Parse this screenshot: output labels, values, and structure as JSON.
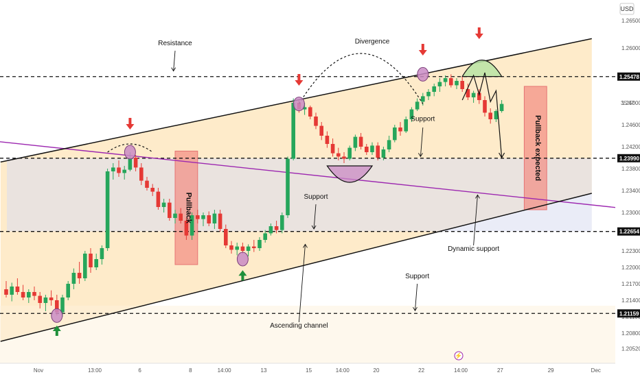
{
  "chart_data": {
    "type": "candlestick",
    "currency": "USD",
    "ylim": [
      1.2025,
      1.2675
    ],
    "y_ticks": [
      "1.26500",
      "1.26000",
      "1.25500",
      "1.25000",
      "1.24600",
      "1.24200",
      "1.23800",
      "1.23400",
      "1.23000",
      "1.22300",
      "1.22000",
      "1.21700",
      "1.21400",
      "1.21100",
      "1.20800",
      "1.20520"
    ],
    "y_tick_values": [
      1.265,
      1.26,
      1.255,
      1.25,
      1.246,
      1.242,
      1.238,
      1.234,
      1.23,
      1.223,
      1.22,
      1.217,
      1.214,
      1.211,
      1.208,
      1.2052
    ],
    "x_ticks": [
      "Nov",
      "13:00",
      "6",
      "8",
      "14:00",
      "13",
      "15",
      "14:00",
      "20",
      "22",
      "14:00",
      "27",
      "29",
      "Dec"
    ],
    "x_tick_index": [
      0,
      10,
      18,
      27,
      33,
      40,
      48,
      54,
      60,
      68,
      75,
      82,
      91,
      99
    ],
    "time_badge": "35:47",
    "candles": [
      [
        1.216,
        1.2175,
        1.2145,
        1.215
      ],
      [
        1.215,
        1.2172,
        1.2138,
        1.2165
      ],
      [
        1.2165,
        1.218,
        1.215,
        1.2155
      ],
      [
        1.2155,
        1.2168,
        1.214,
        1.2145
      ],
      [
        1.2145,
        1.216,
        1.2135,
        1.2155
      ],
      [
        1.2155,
        1.2165,
        1.214,
        1.2148
      ],
      [
        1.2148,
        1.2155,
        1.2125,
        1.2135
      ],
      [
        1.2135,
        1.215,
        1.212,
        1.2145
      ],
      [
        1.2145,
        1.2158,
        1.213,
        1.214
      ],
      [
        1.214,
        1.215,
        1.2112,
        1.2118
      ],
      [
        1.2118,
        1.215,
        1.211,
        1.2145
      ],
      [
        1.2145,
        1.2175,
        1.214,
        1.217
      ],
      [
        1.217,
        1.2198,
        1.216,
        1.219
      ],
      [
        1.219,
        1.221,
        1.217,
        1.218
      ],
      [
        1.218,
        1.223,
        1.2175,
        1.2225
      ],
      [
        1.2225,
        1.2235,
        1.219,
        1.22
      ],
      [
        1.22,
        1.2225,
        1.2195,
        1.2215
      ],
      [
        1.2215,
        1.224,
        1.2205,
        1.2235
      ],
      [
        1.2235,
        1.238,
        1.223,
        1.2375
      ],
      [
        1.2375,
        1.239,
        1.236,
        1.2382
      ],
      [
        1.2382,
        1.2395,
        1.2365,
        1.2372
      ],
      [
        1.2372,
        1.2385,
        1.236,
        1.2378
      ],
      [
        1.2378,
        1.241,
        1.2375,
        1.24
      ],
      [
        1.24,
        1.2405,
        1.2375,
        1.2382
      ],
      [
        1.2382,
        1.239,
        1.235,
        1.2358
      ],
      [
        1.2358,
        1.2365,
        1.234,
        1.2345
      ],
      [
        1.2345,
        1.2352,
        1.233,
        1.2338
      ],
      [
        1.2338,
        1.2345,
        1.2305,
        1.231
      ],
      [
        1.231,
        1.2325,
        1.23,
        1.2318
      ],
      [
        1.2318,
        1.2325,
        1.2285,
        1.229
      ],
      [
        1.229,
        1.2305,
        1.228,
        1.2298
      ],
      [
        1.2298,
        1.2308,
        1.228,
        1.2285
      ],
      [
        1.2285,
        1.229,
        1.225,
        1.2258
      ],
      [
        1.2258,
        1.23,
        1.225,
        1.2295
      ],
      [
        1.2295,
        1.2305,
        1.228,
        1.2288
      ],
      [
        1.2288,
        1.23,
        1.2275,
        1.2295
      ],
      [
        1.2295,
        1.2302,
        1.2275,
        1.228
      ],
      [
        1.228,
        1.2305,
        1.227,
        1.2298
      ],
      [
        1.2298,
        1.2305,
        1.2265,
        1.227
      ],
      [
        1.227,
        1.2278,
        1.2235,
        1.224
      ],
      [
        1.224,
        1.2248,
        1.2225,
        1.2232
      ],
      [
        1.2232,
        1.2245,
        1.2222,
        1.2238
      ],
      [
        1.2238,
        1.2245,
        1.2225,
        1.223
      ],
      [
        1.223,
        1.2242,
        1.222,
        1.2238
      ],
      [
        1.2238,
        1.225,
        1.2228,
        1.2235
      ],
      [
        1.2235,
        1.2255,
        1.223,
        1.225
      ],
      [
        1.225,
        1.2268,
        1.2245,
        1.2262
      ],
      [
        1.2262,
        1.228,
        1.2258,
        1.2275
      ],
      [
        1.2275,
        1.2285,
        1.2262,
        1.2268
      ],
      [
        1.2268,
        1.23,
        1.2262,
        1.2295
      ],
      [
        1.2295,
        1.2402,
        1.229,
        1.2398
      ],
      [
        1.2398,
        1.2508,
        1.2395,
        1.25
      ],
      [
        1.25,
        1.2505,
        1.2482,
        1.2488
      ],
      [
        1.2488,
        1.25,
        1.2478,
        1.2492
      ],
      [
        1.2492,
        1.2495,
        1.247,
        1.2475
      ],
      [
        1.2475,
        1.2482,
        1.2452,
        1.2458
      ],
      [
        1.2458,
        1.2465,
        1.2432,
        1.244
      ],
      [
        1.244,
        1.2448,
        1.2418,
        1.2425
      ],
      [
        1.2425,
        1.2435,
        1.2402,
        1.2408
      ],
      [
        1.2408,
        1.2418,
        1.2395,
        1.2402
      ],
      [
        1.2402,
        1.241,
        1.239,
        1.2398
      ],
      [
        1.2398,
        1.2422,
        1.2395,
        1.2418
      ],
      [
        1.2418,
        1.2442,
        1.2412,
        1.2438
      ],
      [
        1.2438,
        1.2445,
        1.2415,
        1.242
      ],
      [
        1.242,
        1.2425,
        1.2405,
        1.241
      ],
      [
        1.241,
        1.2428,
        1.2405,
        1.2422
      ],
      [
        1.2422,
        1.2428,
        1.2395,
        1.24
      ],
      [
        1.24,
        1.242,
        1.2395,
        1.2415
      ],
      [
        1.2415,
        1.244,
        1.241,
        1.2432
      ],
      [
        1.2432,
        1.246,
        1.2428,
        1.2455
      ],
      [
        1.2455,
        1.2465,
        1.244,
        1.2448
      ],
      [
        1.2448,
        1.2475,
        1.2445,
        1.247
      ],
      [
        1.247,
        1.2492,
        1.2465,
        1.2488
      ],
      [
        1.2488,
        1.2508,
        1.2485,
        1.2502
      ],
      [
        1.2502,
        1.2518,
        1.2495,
        1.2512
      ],
      [
        1.2512,
        1.2525,
        1.2505,
        1.252
      ],
      [
        1.252,
        1.2535,
        1.2512,
        1.253
      ],
      [
        1.253,
        1.2545,
        1.252,
        1.2538
      ],
      [
        1.2538,
        1.255,
        1.253,
        1.2545
      ],
      [
        1.2545,
        1.2552,
        1.2528,
        1.2532
      ],
      [
        1.2532,
        1.2545,
        1.2525,
        1.254
      ],
      [
        1.254,
        1.2548,
        1.252,
        1.2525
      ],
      [
        1.2525,
        1.2535,
        1.2505,
        1.251
      ],
      [
        1.251,
        1.2522,
        1.25,
        1.2518
      ],
      [
        1.2518,
        1.2525,
        1.2498,
        1.2505
      ],
      [
        1.2505,
        1.2512,
        1.2475,
        1.2482
      ],
      [
        1.2482,
        1.249,
        1.2462,
        1.247
      ],
      [
        1.247,
        1.2488,
        1.2465,
        1.2485
      ],
      [
        1.2485,
        1.2505,
        1.2482,
        1.2498
      ]
    ],
    "horizontal_levels": [
      {
        "value": 1.25478,
        "label": "1.25478"
      },
      {
        "value": 1.2399,
        "label": "1.23990"
      },
      {
        "value": 1.22654,
        "label": "1.22654"
      },
      {
        "value": 1.21159,
        "label": "1.21159"
      }
    ],
    "channel": {
      "upper": {
        "x1": -1,
        "y1": 1.2392,
        "x2": 104,
        "y2": 1.2617
      },
      "lower": {
        "x1": -1,
        "y1": 1.2065,
        "x2": 104,
        "y2": 1.2335
      },
      "fill": "#fde4b8"
    },
    "dynamic_support": {
      "x1": -2,
      "y1": 1.243,
      "x2": 112,
      "y2": 1.2305,
      "color": "#9c27b0"
    },
    "support_zone": {
      "top": 1.2399,
      "bottom": 1.22654,
      "x_end": 104,
      "color": "#d8dcf0"
    },
    "pullback_boxes": [
      {
        "x1": 30,
        "x2": 34,
        "top": 1.2412,
        "bottom": 1.2205,
        "label": "Pullback"
      },
      {
        "x1": 92,
        "x2": 96,
        "top": 1.253,
        "bottom": 1.2305,
        "label": "Pullback expected"
      }
    ],
    "circles": [
      {
        "x": 9,
        "y": 1.2112
      },
      {
        "x": 22,
        "y": 1.241
      },
      {
        "x": 42,
        "y": 1.2215
      },
      {
        "x": 52,
        "y": 1.2498
      },
      {
        "x": 74,
        "y": 1.2552
      }
    ],
    "arcs": [
      {
        "x1": 18,
        "x2": 26,
        "y": 1.241,
        "h": 1.2425,
        "style": "dashed"
      },
      {
        "x1": 52,
        "x2": 74,
        "y": 1.2498,
        "h": 1.259,
        "style": "dashed"
      },
      {
        "x1": 57,
        "x2": 65,
        "y": 1.2385,
        "h": 1.2355,
        "style": "filled"
      },
      {
        "x1": 81,
        "x2": 88,
        "y": 1.2548,
        "h": 1.2578,
        "style": "filled-green"
      }
    ],
    "arrows_down": [
      {
        "x": 22,
        "y": 1.2455
      },
      {
        "x": 52,
        "y": 1.2535
      },
      {
        "x": 74,
        "y": 1.259
      },
      {
        "x": 84,
        "y": 1.262
      }
    ],
    "arrows_up": [
      {
        "x": 9,
        "y": 1.2085
      },
      {
        "x": 42,
        "y": 1.2186
      }
    ],
    "projection_path": [
      [
        81,
        1.2505
      ],
      [
        83,
        1.255
      ],
      [
        84,
        1.2515
      ],
      [
        85,
        1.2555
      ],
      [
        86,
        1.2502
      ],
      [
        87,
        1.2522
      ],
      [
        88,
        1.24
      ]
    ],
    "annotations": [
      {
        "text": "Resistance",
        "x": 30,
        "y": 1.2605,
        "ptr": [
          1.2595,
          1.2558
        ]
      },
      {
        "text": "Divergence",
        "x": 65,
        "y": 1.2608,
        "ptr": null
      },
      {
        "text": "Support",
        "x": 74,
        "y": 1.2467,
        "ptr": [
          1.2455,
          1.2402
        ]
      },
      {
        "text": "Support",
        "x": 55,
        "y": 1.2325,
        "ptr": [
          1.2315,
          1.227
        ]
      },
      {
        "text": "Dynamic support",
        "x": 83,
        "y": 1.223,
        "ptr": [
          1.224,
          1.2332
        ]
      },
      {
        "text": "Support",
        "x": 73,
        "y": 1.218,
        "ptr": [
          1.217,
          1.2121
        ]
      },
      {
        "text": "Ascending channel",
        "x": 52,
        "y": 1.209,
        "ptr": [
          1.21,
          1.2242
        ]
      }
    ]
  }
}
